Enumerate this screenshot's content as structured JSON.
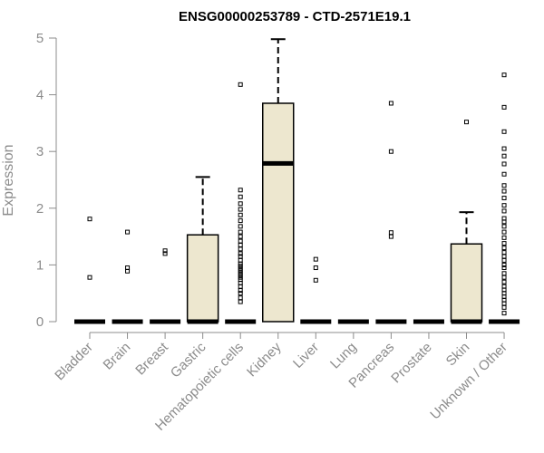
{
  "chart_data": {
    "type": "boxplot",
    "title": "ENSG00000253789 - CTD-2571E19.1",
    "xlabel": "",
    "ylabel": "Expression",
    "ylim": [
      0,
      5
    ],
    "yticks": [
      0,
      1,
      2,
      3,
      4,
      5
    ],
    "grid": false,
    "colors": {
      "box_fill": "#ede7cf",
      "outline": "#000000",
      "axis": "#8c8c8c"
    },
    "categories": [
      "Bladder",
      "Brain",
      "Breast",
      "Gastric",
      "Hematopoietic cells",
      "Kidney",
      "Liver",
      "Lung",
      "Pancreas",
      "Prostate",
      "Skin",
      "Unknown / Other"
    ],
    "boxes": [
      {
        "min": 0,
        "q1": 0,
        "median": 0,
        "q3": 0,
        "max": 0,
        "outliers": [
          0.78,
          1.81
        ]
      },
      {
        "min": 0,
        "q1": 0,
        "median": 0,
        "q3": 0,
        "max": 0,
        "outliers": [
          0.89,
          0.95,
          1.58
        ]
      },
      {
        "min": 0,
        "q1": 0,
        "median": 0,
        "q3": 0,
        "max": 0,
        "outliers": [
          1.2,
          1.25
        ]
      },
      {
        "min": 0,
        "q1": 0,
        "median": 0,
        "q3": 1.53,
        "max": 2.55,
        "outliers": []
      },
      {
        "min": 0,
        "q1": 0,
        "median": 0,
        "q3": 0,
        "max": 0,
        "outliers": [
          0.35,
          0.42,
          0.5,
          0.55,
          0.62,
          0.68,
          0.74,
          0.78,
          0.82,
          0.86,
          0.9,
          0.94,
          0.98,
          1.02,
          1.08,
          1.15,
          1.2,
          1.28,
          1.35,
          1.42,
          1.5,
          1.58,
          1.68,
          1.78,
          1.88,
          1.98,
          2.08,
          2.2,
          2.32,
          4.18
        ]
      },
      {
        "min": 0,
        "q1": 0,
        "median": 2.79,
        "q3": 3.85,
        "max": 4.98,
        "outliers": []
      },
      {
        "min": 0,
        "q1": 0,
        "median": 0,
        "q3": 0,
        "max": 0,
        "outliers": [
          0.73,
          0.95,
          1.1
        ]
      },
      {
        "min": 0,
        "q1": 0,
        "median": 0,
        "q3": 0,
        "max": 0,
        "outliers": []
      },
      {
        "min": 0,
        "q1": 0,
        "median": 0,
        "q3": 0,
        "max": 0,
        "outliers": [
          1.5,
          1.57,
          3.0,
          3.85
        ]
      },
      {
        "min": 0,
        "q1": 0,
        "median": 0,
        "q3": 0,
        "max": 0,
        "outliers": []
      },
      {
        "min": 0,
        "q1": 0,
        "median": 0,
        "q3": 1.37,
        "max": 1.93,
        "outliers": [
          3.52
        ]
      },
      {
        "min": 0,
        "q1": 0,
        "median": 0,
        "q3": 0,
        "max": 0,
        "outliers": [
          0.15,
          0.25,
          0.32,
          0.38,
          0.44,
          0.5,
          0.56,
          0.62,
          0.7,
          0.78,
          0.85,
          0.95,
          1.0,
          1.08,
          1.15,
          1.22,
          1.3,
          1.38,
          1.48,
          1.58,
          1.68,
          1.76,
          1.82,
          1.95,
          2.05,
          2.18,
          2.3,
          2.4,
          2.6,
          2.78,
          2.92,
          3.05,
          3.35,
          3.78,
          4.35
        ]
      }
    ]
  }
}
